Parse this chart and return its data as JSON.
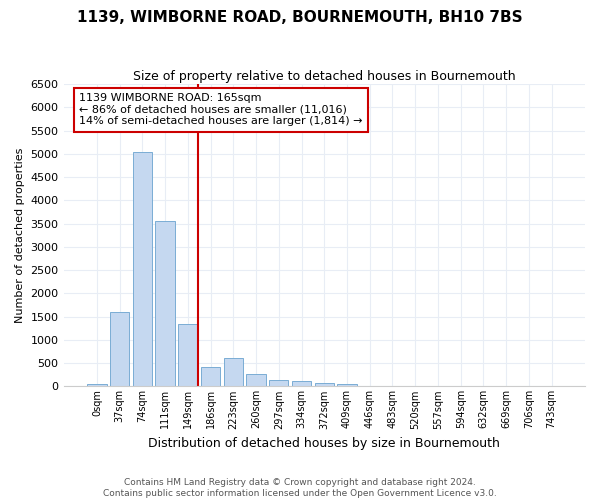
{
  "title": "1139, WIMBORNE ROAD, BOURNEMOUTH, BH10 7BS",
  "subtitle": "Size of property relative to detached houses in Bournemouth",
  "xlabel": "Distribution of detached houses by size in Bournemouth",
  "ylabel": "Number of detached properties",
  "bin_labels": [
    "0sqm",
    "37sqm",
    "74sqm",
    "111sqm",
    "149sqm",
    "186sqm",
    "223sqm",
    "260sqm",
    "297sqm",
    "334sqm",
    "372sqm",
    "409sqm",
    "446sqm",
    "483sqm",
    "520sqm",
    "557sqm",
    "594sqm",
    "632sqm",
    "669sqm",
    "706sqm",
    "743sqm"
  ],
  "bar_heights": [
    50,
    1600,
    5050,
    3550,
    1350,
    420,
    600,
    260,
    130,
    110,
    70,
    50,
    10,
    10,
    5,
    5,
    5,
    5,
    5,
    5,
    5
  ],
  "bar_color": "#c5d8f0",
  "bar_edge_color": "#7aadd4",
  "vline_x": 4.45,
  "vline_color": "#cc0000",
  "annotation_text": "1139 WIMBORNE ROAD: 165sqm\n← 86% of detached houses are smaller (11,016)\n14% of semi-detached houses are larger (1,814) →",
  "annotation_box_color": "#ffffff",
  "annotation_box_edge": "#cc0000",
  "ylim": [
    0,
    6500
  ],
  "yticks": [
    0,
    500,
    1000,
    1500,
    2000,
    2500,
    3000,
    3500,
    4000,
    4500,
    5000,
    5500,
    6000,
    6500
  ],
  "footer1": "Contains HM Land Registry data © Crown copyright and database right 2024.",
  "footer2": "Contains public sector information licensed under the Open Government Licence v3.0.",
  "bg_color": "#ffffff",
  "plot_bg_color": "#ffffff",
  "grid_color": "#e8edf5"
}
